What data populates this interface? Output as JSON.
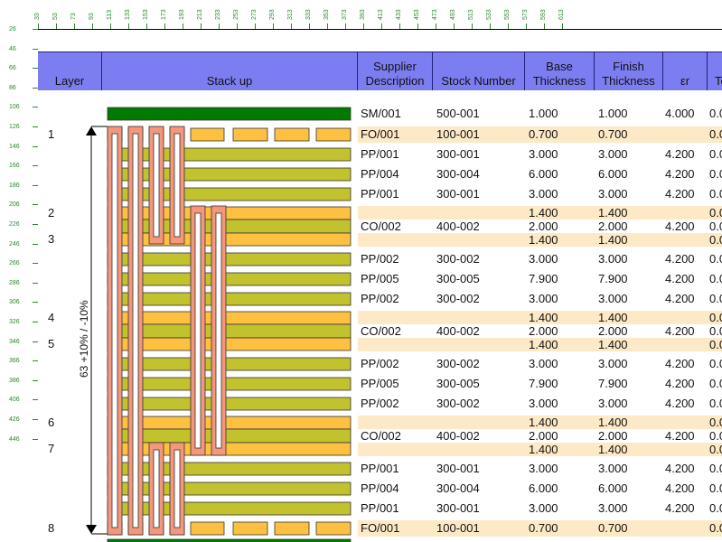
{
  "ruler": {
    "top_ticks": [
      "33",
      "53",
      "73",
      "93",
      "113",
      "133",
      "153",
      "173",
      "193",
      "213",
      "233",
      "253",
      "273",
      "293",
      "313",
      "333",
      "353",
      "373",
      "393",
      "413",
      "433",
      "453",
      "473",
      "493",
      "513",
      "533",
      "553",
      "573",
      "593",
      "613"
    ],
    "left_ticks": [
      "26",
      "46",
      "66",
      "86",
      "106",
      "126",
      "146",
      "166",
      "186",
      "206",
      "226",
      "246",
      "266",
      "286",
      "306",
      "326",
      "346",
      "366",
      "386",
      "406",
      "426",
      "446"
    ]
  },
  "columns": {
    "layer": "Layer",
    "stackup": "Stack up",
    "supplier": "Supplier Description",
    "stock": "Stock Number",
    "base": "Base Thickness",
    "finish": "Finish Thickness",
    "er": "εr",
    "tc": "Tc"
  },
  "thickness_label": "63 +10% / -10%",
  "layer_labels": [
    "1",
    "2",
    "3",
    "4",
    "5",
    "6",
    "7",
    "8"
  ],
  "rows": [
    {
      "desc": "SM/001",
      "stock": "500-001",
      "base": "1.000",
      "finish": "1.000",
      "er": "4.000",
      "tc": "0.0",
      "kind": "mask",
      "band": false
    },
    {
      "desc": "FO/001",
      "stock": "100-001",
      "base": "0.700",
      "finish": "0.700",
      "er": "",
      "tc": "0.0",
      "kind": "foil",
      "band": true
    },
    {
      "desc": "PP/001",
      "stock": "300-001",
      "base": "3.000",
      "finish": "3.000",
      "er": "4.200",
      "tc": "0.0",
      "kind": "pp",
      "band": false
    },
    {
      "desc": "PP/004",
      "stock": "300-004",
      "base": "6.000",
      "finish": "6.000",
      "er": "4.200",
      "tc": "0.0",
      "kind": "pp",
      "band": false
    },
    {
      "desc": "PP/001",
      "stock": "300-001",
      "base": "3.000",
      "finish": "3.000",
      "er": "4.200",
      "tc": "0.0",
      "kind": "pp",
      "band": false
    },
    {
      "desc": "CO/002",
      "stock": "400-002",
      "base": "2.000",
      "finish": "2.000",
      "er": "4.200",
      "tc": "0.0",
      "kind": "core",
      "band": true,
      "cu_top": "1.400",
      "cu_bot": "1.400",
      "tc_top": "0.0",
      "tc_bot": "0.0"
    },
    {
      "desc": "PP/002",
      "stock": "300-002",
      "base": "3.000",
      "finish": "3.000",
      "er": "4.200",
      "tc": "0.0",
      "kind": "pp",
      "band": false
    },
    {
      "desc": "PP/005",
      "stock": "300-005",
      "base": "7.900",
      "finish": "7.900",
      "er": "4.200",
      "tc": "0.0",
      "kind": "pp",
      "band": false
    },
    {
      "desc": "PP/002",
      "stock": "300-002",
      "base": "3.000",
      "finish": "3.000",
      "er": "4.200",
      "tc": "0.0",
      "kind": "pp",
      "band": false
    },
    {
      "desc": "CO/002",
      "stock": "400-002",
      "base": "2.000",
      "finish": "2.000",
      "er": "4.200",
      "tc": "0.0",
      "kind": "core",
      "band": true,
      "cu_top": "1.400",
      "cu_bot": "1.400",
      "tc_top": "0.0",
      "tc_bot": "0.0"
    },
    {
      "desc": "PP/002",
      "stock": "300-002",
      "base": "3.000",
      "finish": "3.000",
      "er": "4.200",
      "tc": "0.0",
      "kind": "pp",
      "band": false
    },
    {
      "desc": "PP/005",
      "stock": "300-005",
      "base": "7.900",
      "finish": "7.900",
      "er": "4.200",
      "tc": "0.0",
      "kind": "pp",
      "band": false
    },
    {
      "desc": "PP/002",
      "stock": "300-002",
      "base": "3.000",
      "finish": "3.000",
      "er": "4.200",
      "tc": "0.0",
      "kind": "pp",
      "band": false
    },
    {
      "desc": "CO/002",
      "stock": "400-002",
      "base": "2.000",
      "finish": "2.000",
      "er": "4.200",
      "tc": "0.0",
      "kind": "core",
      "band": true,
      "cu_top": "1.400",
      "cu_bot": "1.400",
      "tc_top": "0.0",
      "tc_bot": "0.0"
    },
    {
      "desc": "PP/001",
      "stock": "300-001",
      "base": "3.000",
      "finish": "3.000",
      "er": "4.200",
      "tc": "0.0",
      "kind": "pp",
      "band": false
    },
    {
      "desc": "PP/004",
      "stock": "300-004",
      "base": "6.000",
      "finish": "6.000",
      "er": "4.200",
      "tc": "0.0",
      "kind": "pp",
      "band": false
    },
    {
      "desc": "PP/001",
      "stock": "300-001",
      "base": "3.000",
      "finish": "3.000",
      "er": "4.200",
      "tc": "0.0",
      "kind": "pp",
      "band": false
    },
    {
      "desc": "FO/001",
      "stock": "100-001",
      "base": "0.700",
      "finish": "0.700",
      "er": "",
      "tc": "0.0",
      "kind": "foil",
      "band": true
    }
  ],
  "colors": {
    "header_bg": "#7d7df2",
    "band": "#fde9c6",
    "prepreg": "#c2c22e",
    "copper": "#fdc040",
    "mask": "#007a00",
    "via": "#f4977a",
    "ruler": "#2a8a2a"
  }
}
